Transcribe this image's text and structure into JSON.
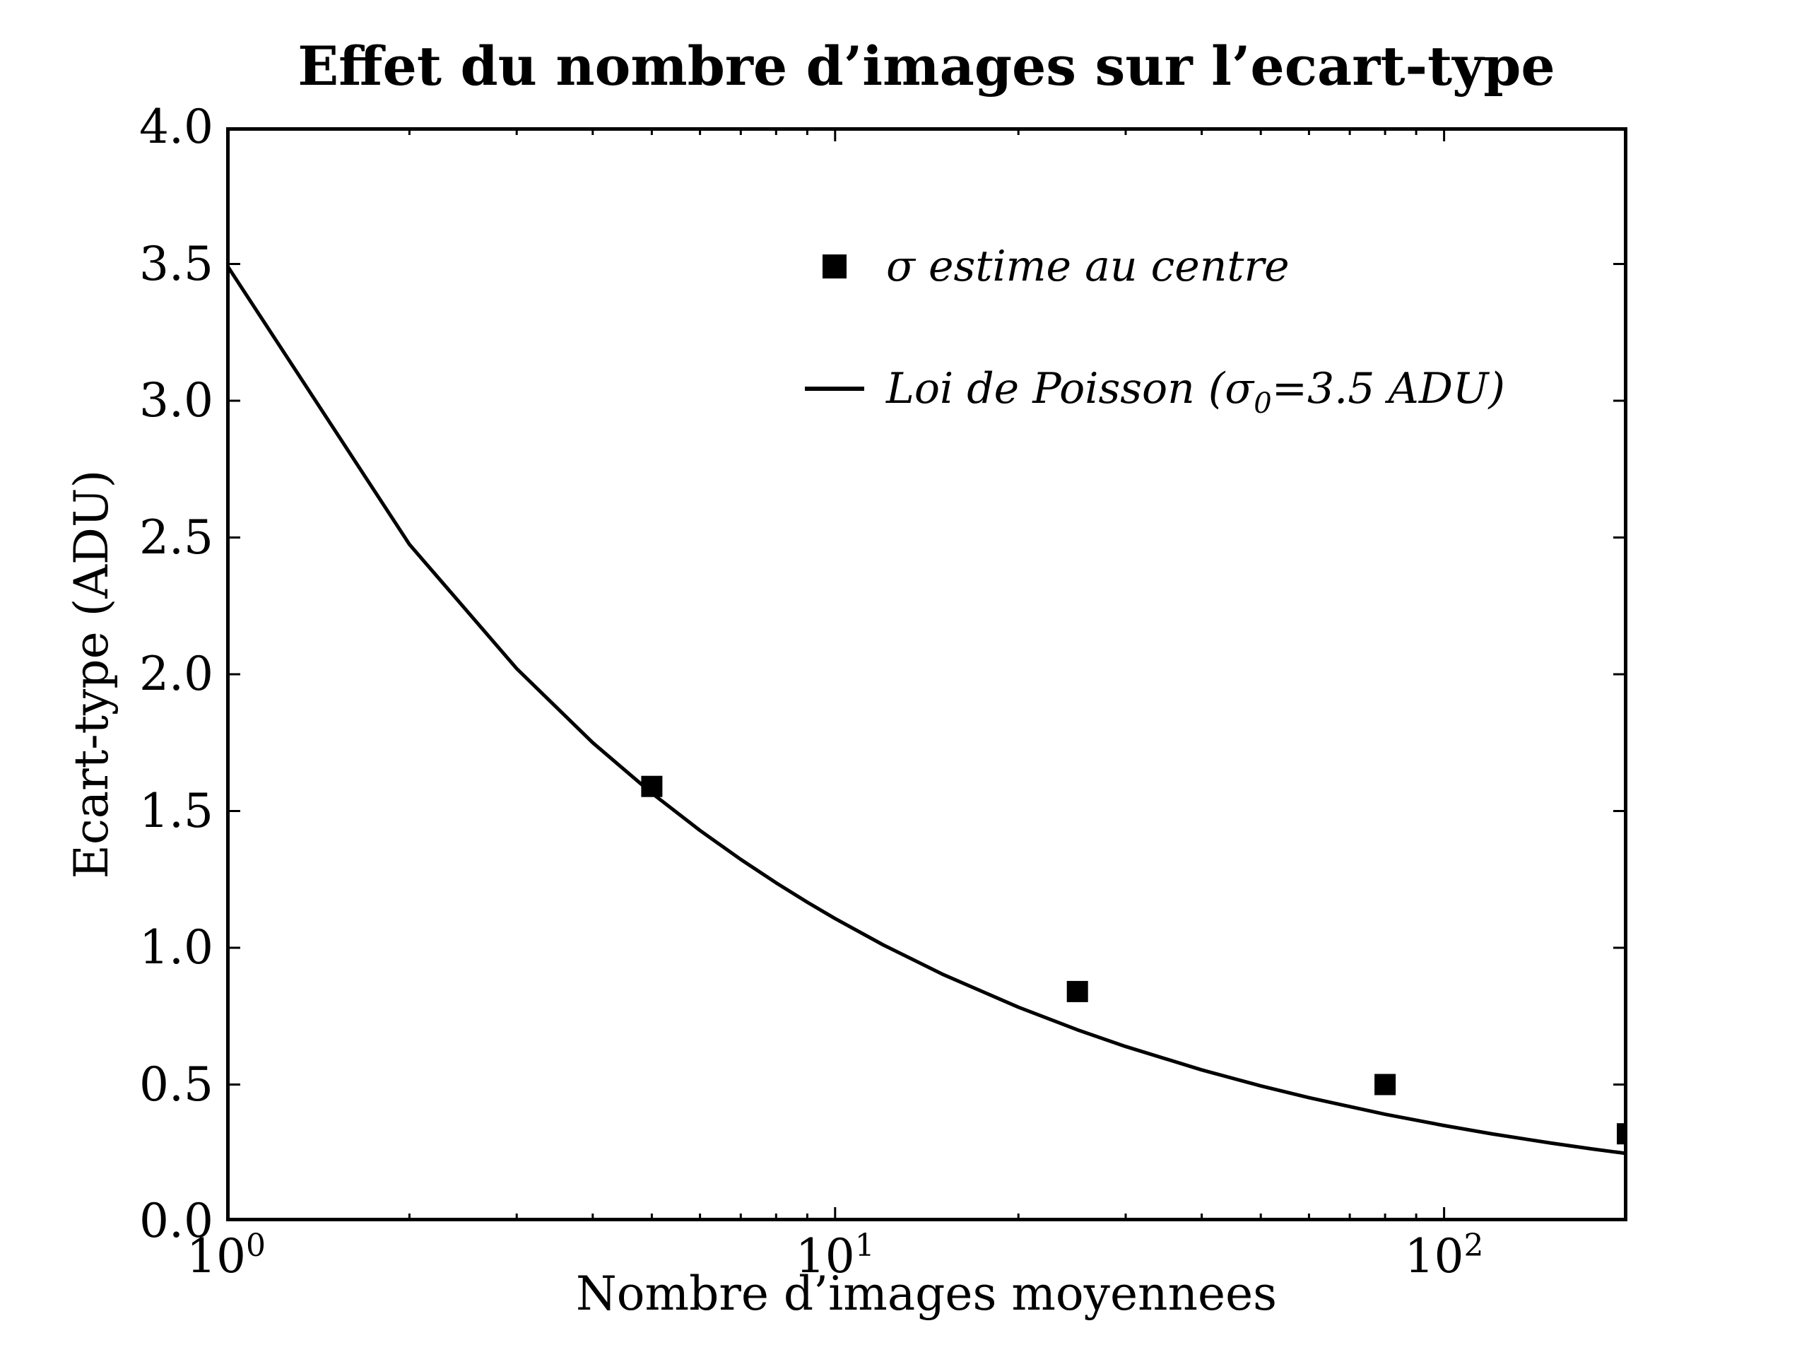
{
  "title": "Effet du nombre d’images sur l’ecart-type",
  "colors": {
    "foreground": "#000000",
    "background": "#ffffff"
  },
  "axes": {
    "x": {
      "label": "Nombre d’images moyennees",
      "scale": "log",
      "min": 1,
      "max": 200,
      "major_ticks": [
        {
          "value": 1,
          "base": "10",
          "exp": "0"
        },
        {
          "value": 10,
          "base": "10",
          "exp": "1"
        },
        {
          "value": 100,
          "base": "10",
          "exp": "2"
        }
      ],
      "minor_ticks": [
        2,
        3,
        4,
        5,
        6,
        7,
        8,
        9,
        20,
        30,
        40,
        50,
        60,
        70,
        80,
        90,
        200
      ]
    },
    "y": {
      "label": "Ecart-type (ADU)",
      "scale": "linear",
      "min": 0,
      "max": 4,
      "tick_values": [
        0,
        0.5,
        1.0,
        1.5,
        2.0,
        2.5,
        3.0,
        3.5,
        4.0
      ],
      "tick_labels": [
        "0.0",
        "0.5",
        "1.0",
        "1.5",
        "2.0",
        "2.5",
        "3.0",
        "3.5",
        "4.0"
      ]
    }
  },
  "legend": [
    {
      "marker": "square",
      "label": "σ estime au centre"
    },
    {
      "marker": "line",
      "label_prefix": "Loi de Poisson (σ",
      "label_sub": "0",
      "label_suffix": "=3.5 ADU)"
    }
  ],
  "chart_data": {
    "type": "line",
    "title": "Effet du nombre d’images sur l’ecart-type",
    "xlabel": "Nombre d’images moyennees",
    "ylabel": "Ecart-type (ADU)",
    "x_scale": "log",
    "xlim": [
      1,
      200
    ],
    "ylim": [
      0,
      4
    ],
    "grid": false,
    "legend_position": "upper center, frameless",
    "series": [
      {
        "name": "σ estime au centre",
        "type": "scatter",
        "marker": "square",
        "color": "#000000",
        "points": [
          [
            5,
            1.59
          ],
          [
            25,
            0.84
          ],
          [
            80,
            0.5
          ],
          [
            200,
            0.32
          ]
        ]
      },
      {
        "name": "Loi de Poisson (σ0=3.5 ADU)",
        "type": "line",
        "color": "#000000",
        "formula": "sigma0 / sqrt(N)",
        "sigma0": 3.5,
        "x_samples": [
          1,
          2,
          3,
          4,
          5,
          6,
          7,
          8,
          9,
          10,
          12,
          15,
          20,
          25,
          30,
          40,
          50,
          60,
          80,
          100,
          120,
          150,
          175,
          200
        ]
      }
    ]
  }
}
